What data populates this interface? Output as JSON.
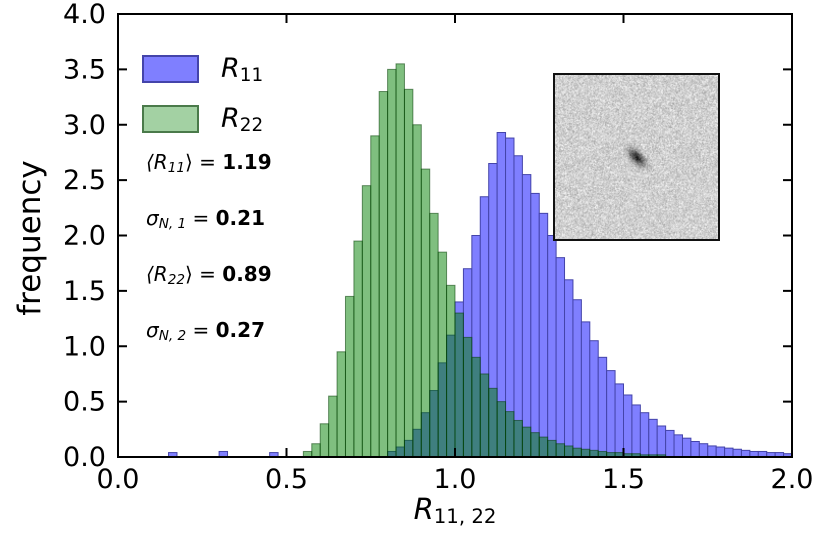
{
  "axes": {
    "ylabel": "frequency",
    "xlabel_pre": "R",
    "xlabel_sub": "11, 22"
  },
  "legend": {
    "items": [
      {
        "pre": "R",
        "sub": "11",
        "fill": "#7f7fff",
        "edge": "#4444aa"
      },
      {
        "pre": "R",
        "sub": "22",
        "fill": "#a3d1a3",
        "edge": "#4a7a4a"
      }
    ]
  },
  "stats": [
    {
      "pre": "⟨R",
      "sub": "11",
      "post": "⟩ = ",
      "val": "1.19"
    },
    {
      "pre": "σ",
      "sub": "N, 1",
      "post": " = ",
      "val": "0.21"
    },
    {
      "pre": "⟨R",
      "sub": "22",
      "post": "⟩ = ",
      "val": "0.89"
    },
    {
      "pre": "σ",
      "sub": "N, 2",
      "post": " = ",
      "val": "0.27"
    }
  ],
  "chart_data": {
    "type": "bar",
    "subtype": "histogram",
    "title": "",
    "xlabel": "R_{11,22}",
    "ylabel": "frequency",
    "xlim": [
      0.0,
      2.0
    ],
    "ylim": [
      0.0,
      4.0
    ],
    "grid": false,
    "legend_position": "upper left",
    "xticks": [
      0,
      0.5,
      1,
      1.5,
      2
    ],
    "xtick_labels": [
      "0.0",
      "0.5",
      "1.0",
      "1.5",
      "2.0"
    ],
    "yticks": [
      0,
      0.5,
      1,
      1.5,
      2,
      2.5,
      3,
      3.5,
      4
    ],
    "ytick_labels": [
      "0.0",
      "0.5",
      "1.0",
      "1.5",
      "2.0",
      "2.5",
      "3.0",
      "3.5",
      "4.0"
    ],
    "annotations": [
      "⟨R11⟩ = 1.19",
      "σ_N,1 = 0.21",
      "⟨R22⟩ = 0.89",
      "σ_N,2 = 0.27"
    ],
    "bin_start": 0.0,
    "bin_width": 0.025,
    "series": [
      {
        "name": "R11",
        "fill": "#7f7fff",
        "edge": "#4444aa",
        "values": [
          0,
          0,
          0,
          0,
          0,
          0,
          0.04,
          0,
          0,
          0,
          0,
          0,
          0.05,
          0,
          0,
          0,
          0,
          0,
          0.04,
          0,
          0,
          0,
          0,
          0,
          0,
          0,
          0,
          0,
          0,
          0,
          0,
          0,
          0.05,
          0.09,
          0.15,
          0.25,
          0.4,
          0.6,
          0.85,
          1.1,
          1.4,
          1.7,
          2.0,
          2.35,
          2.65,
          2.93,
          2.88,
          2.72,
          2.55,
          2.38,
          2.2,
          2.0,
          1.8,
          1.6,
          1.42,
          1.22,
          1.05,
          0.9,
          0.78,
          0.66,
          0.56,
          0.47,
          0.4,
          0.34,
          0.28,
          0.24,
          0.2,
          0.17,
          0.14,
          0.12,
          0.1,
          0.09,
          0.08,
          0.07,
          0.06,
          0.05,
          0.05,
          0.04,
          0.04,
          0.03
        ]
      },
      {
        "name": "R22",
        "fill": "rgba(0,127,0,0.5)",
        "edge": "rgba(0,60,0,0.55)",
        "values": [
          0,
          0,
          0,
          0,
          0,
          0,
          0,
          0,
          0,
          0,
          0,
          0,
          0,
          0,
          0,
          0,
          0,
          0,
          0,
          0,
          0,
          0,
          0.05,
          0.12,
          0.3,
          0.55,
          0.95,
          1.45,
          1.95,
          2.45,
          2.9,
          3.3,
          3.5,
          3.55,
          3.32,
          3.0,
          2.6,
          2.2,
          1.85,
          1.55,
          1.3,
          1.08,
          0.9,
          0.75,
          0.62,
          0.5,
          0.41,
          0.33,
          0.27,
          0.22,
          0.18,
          0.15,
          0.12,
          0.1,
          0.08,
          0.07,
          0.06,
          0.05,
          0.04,
          0.04,
          0.03,
          0.03,
          0.02,
          0.02,
          0.02,
          0,
          0,
          0,
          0,
          0,
          0,
          0,
          0,
          0,
          0,
          0,
          0,
          0,
          0,
          0
        ]
      }
    ],
    "inset": {
      "description": "noisy grayscale cutout with dark point source at center",
      "position": "upper right"
    }
  }
}
